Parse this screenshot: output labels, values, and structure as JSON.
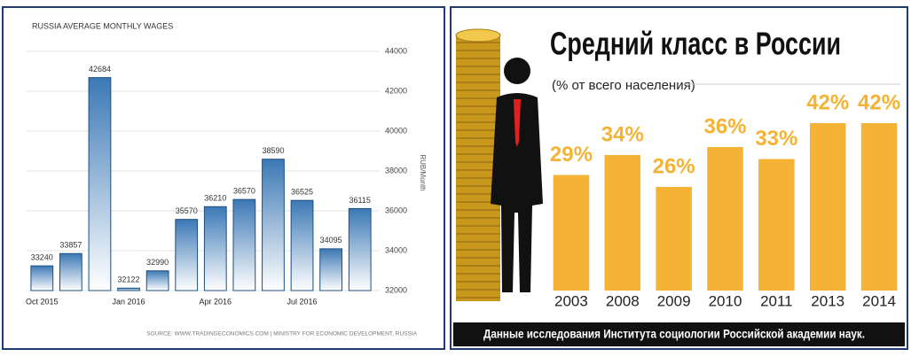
{
  "chart_data": [
    {
      "type": "bar",
      "title": "RUSSIA AVERAGE MONTHLY WAGES",
      "categories": [
        "Oct 2015",
        null,
        null,
        "Jan 2016",
        null,
        null,
        "Apr 2016",
        null,
        null,
        "Jul 2016",
        null,
        null
      ],
      "values": [
        33240,
        33857,
        42684,
        32122,
        32990,
        35570,
        36210,
        36570,
        38590,
        36525,
        34095,
        36115
      ],
      "color": "#3b78b5",
      "ylim": [
        32000,
        44000
      ],
      "yticks": [
        32000,
        34000,
        36000,
        38000,
        40000,
        42000,
        44000
      ],
      "grid": true,
      "y_label": "RUB/Month",
      "source": "SOURCE: WWW.TRADINGECONOMICS.COM | MINISTRY FOR ECONOMIC DEVELOPMENT, RUSSIA"
    },
    {
      "type": "bar",
      "title": "Средний класс в России",
      "subtitle": "(% от всего населения)",
      "categories": [
        "2003",
        "2008",
        "2009",
        "2010",
        "2011",
        "2013",
        "2014"
      ],
      "values": [
        29,
        34,
        26,
        36,
        33,
        42,
        42
      ],
      "value_labels": [
        "29%",
        "34%",
        "26%",
        "36%",
        "33%",
        "42%",
        "42%"
      ],
      "color": "#f5b335",
      "source": "Данные исследования Института социологии Российской академии наук."
    }
  ]
}
